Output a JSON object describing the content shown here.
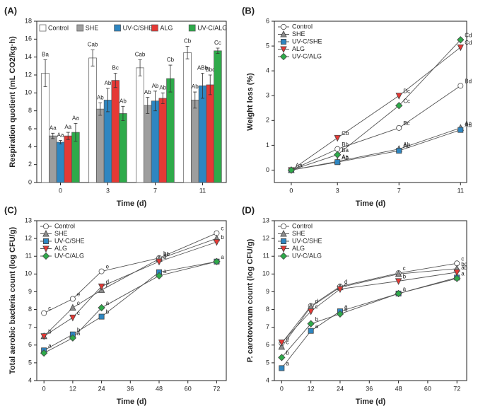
{
  "chart_data": [
    {
      "type": "bar",
      "panel_label": "(A)",
      "xlabel": "Time (d)",
      "ylabel": "Respiration quotient (mL CO2/kg·h)",
      "categories": [
        "0",
        "3",
        "7",
        "11"
      ],
      "ylim": [
        0,
        18
      ],
      "yticks": [
        0,
        2,
        4,
        6,
        8,
        10,
        12,
        14,
        16,
        18
      ],
      "series": [
        {
          "name": "Control",
          "color": "#ffffff",
          "values": [
            12.2,
            13.9,
            12.8,
            14.5
          ],
          "errors": [
            1.5,
            0.9,
            0.9,
            0.7
          ],
          "annotations": [
            "Ba",
            "Cab",
            "Cab",
            "Cb"
          ]
        },
        {
          "name": "SHE",
          "color": "#9e9e9e",
          "values": [
            5.2,
            8.2,
            8.6,
            9.2
          ],
          "errors": [
            0.3,
            0.7,
            0.9,
            0.9
          ],
          "annotations": [
            "Aa",
            "Ab",
            "Ab",
            "Ab"
          ]
        },
        {
          "name": "UV-C/SHE",
          "color": "#2e86c1",
          "values": [
            4.5,
            9.2,
            9.1,
            10.8
          ],
          "errors": [
            0.2,
            1.3,
            1.1,
            1.4
          ],
          "annotations": [
            "Aa",
            "Ab",
            "Ab",
            "ABb"
          ]
        },
        {
          "name": "ALG",
          "color": "#e53935",
          "values": [
            5.2,
            11.4,
            9.4,
            10.9
          ],
          "errors": [
            0.4,
            0.8,
            0.6,
            1.1
          ],
          "annotations": [
            "Aa",
            "Bc",
            "Ab",
            "Bbc"
          ]
        },
        {
          "name": "UV-C/ALG",
          "color": "#2eaa4a",
          "values": [
            5.6,
            7.7,
            11.6,
            14.7
          ],
          "errors": [
            1.0,
            0.8,
            1.5,
            0.3
          ],
          "annotations": [
            "Aa",
            "Ab",
            "Cb",
            "Cc"
          ]
        }
      ]
    },
    {
      "type": "line",
      "panel_label": "(B)",
      "xlabel": "Time (d)",
      "ylabel": "Weight loss (%)",
      "x": [
        0,
        3,
        7,
        11
      ],
      "xlim": [
        -1.1,
        11.4
      ],
      "xticks": [
        0,
        3,
        7,
        11
      ],
      "ylim": [
        -0.5,
        6
      ],
      "yticks": [
        0,
        1,
        2,
        3,
        4,
        5,
        6
      ],
      "series": [
        {
          "name": "Control",
          "color": "#ffffff",
          "marker": "circle",
          "values": [
            0,
            0.85,
            1.7,
            3.4
          ],
          "annotations": [
            "Aa",
            "Bb",
            "Bc",
            "Bd"
          ]
        },
        {
          "name": "SHE",
          "color": "#8c8c8c",
          "marker": "triangle",
          "values": [
            0,
            0.35,
            0.85,
            1.7
          ],
          "annotations": [
            null,
            "Aa",
            "Ab",
            "Ac"
          ]
        },
        {
          "name": "UV-C/SHE",
          "color": "#2e86c1",
          "marker": "square",
          "values": [
            0,
            0.32,
            0.78,
            1.62
          ],
          "annotations": [
            null,
            "Ab",
            "Ac",
            "Ad"
          ]
        },
        {
          "name": "ALG",
          "color": "#e53935",
          "marker": "triangle-down",
          "values": [
            0,
            1.3,
            3.0,
            4.95
          ],
          "annotations": [
            null,
            "Cb",
            "Dc",
            "Cd"
          ]
        },
        {
          "name": "UV-C/ALG",
          "color": "#2eaa4a",
          "marker": "diamond",
          "values": [
            0,
            0.62,
            2.6,
            5.25
          ],
          "annotations": [
            null,
            "Ba",
            "Cc",
            "Cd"
          ]
        }
      ]
    },
    {
      "type": "line",
      "panel_label": "(C)",
      "xlabel": "Time (d)",
      "ylabel": "Total aerobic bacteria count (log CFU/g)",
      "x": [
        0,
        12,
        24,
        48,
        72
      ],
      "xlim": [
        -3,
        76
      ],
      "xticks": [
        0,
        12,
        24,
        36,
        48,
        60,
        72
      ],
      "ylim": [
        4,
        13
      ],
      "yticks": [
        4,
        5,
        6,
        7,
        8,
        9,
        10,
        11,
        12,
        13
      ],
      "series": [
        {
          "name": "Control",
          "color": "#ffffff",
          "marker": "circle",
          "values": [
            7.8,
            8.6,
            10.15,
            10.9,
            12.3
          ],
          "annotations": [
            "c",
            "e",
            "e",
            "b",
            "c"
          ]
        },
        {
          "name": "SHE",
          "color": "#8c8c8c",
          "marker": "triangle",
          "values": [
            6.5,
            8.1,
            9.1,
            10.85,
            12.0
          ],
          "annotations": [
            "b",
            "c",
            "c",
            "ab",
            null
          ]
        },
        {
          "name": "UV-C/SHE",
          "color": "#2e86c1",
          "marker": "square",
          "values": [
            5.7,
            6.6,
            7.6,
            10.1,
            10.7
          ],
          "annotations": [
            "a",
            "b",
            "b",
            null,
            null
          ]
        },
        {
          "name": "ALG",
          "color": "#e53935",
          "marker": "triangle-down",
          "values": [
            6.5,
            7.55,
            9.3,
            10.7,
            11.8
          ],
          "annotations": [
            null,
            "c",
            "d",
            "a",
            "b"
          ]
        },
        {
          "name": "UV-C/ALG",
          "color": "#2eaa4a",
          "marker": "diamond",
          "values": [
            5.55,
            6.4,
            8.1,
            9.9,
            10.7
          ],
          "annotations": [
            null,
            "a",
            "a",
            "a",
            "a"
          ]
        }
      ]
    },
    {
      "type": "line",
      "panel_label": "(D)",
      "xlabel": "Time (d)",
      "ylabel": "P. carotovorum count (log CFU/g)",
      "x": [
        0,
        12,
        24,
        48,
        72
      ],
      "xlim": [
        -3,
        76
      ],
      "xticks": [
        0,
        12,
        24,
        36,
        48,
        60,
        72
      ],
      "ylim": [
        4,
        13
      ],
      "yticks": [
        4,
        5,
        6,
        7,
        8,
        9,
        10,
        11,
        12,
        13
      ],
      "series": [
        {
          "name": "Control",
          "color": "#ffffff",
          "marker": "circle",
          "values": [
            6.1,
            8.2,
            9.3,
            10.05,
            10.6
          ],
          "annotations": [
            "d",
            "d",
            "d",
            "c",
            "c"
          ]
        },
        {
          "name": "SHE",
          "color": "#8c8c8c",
          "marker": "triangle",
          "values": [
            5.9,
            8.15,
            9.25,
            10.0,
            10.3
          ],
          "annotations": [
            "c",
            null,
            null,
            null,
            "bc"
          ]
        },
        {
          "name": "UV-C/SHE",
          "color": "#2e86c1",
          "marker": "square",
          "values": [
            4.7,
            6.8,
            7.9,
            8.9,
            9.8
          ],
          "annotations": [
            "a",
            "a",
            "a",
            null,
            null
          ]
        },
        {
          "name": "ALG",
          "color": "#e53935",
          "marker": "triangle-down",
          "values": [
            6.15,
            7.9,
            9.15,
            9.6,
            10.1
          ],
          "annotations": [
            null,
            "c",
            "c",
            "b",
            "ab"
          ]
        },
        {
          "name": "UV-C/ALG",
          "color": "#2eaa4a",
          "marker": "diamond",
          "values": [
            5.3,
            7.2,
            7.75,
            8.9,
            9.75
          ],
          "annotations": [
            "b",
            "b",
            "b",
            "a",
            "a"
          ]
        }
      ]
    }
  ]
}
